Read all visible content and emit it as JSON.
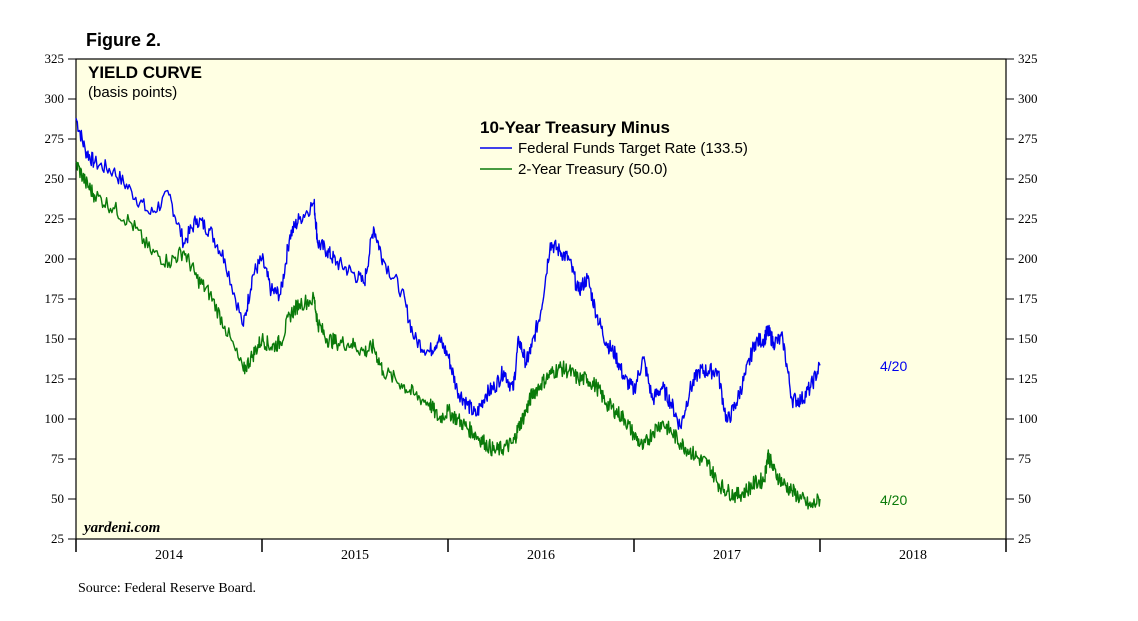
{
  "figure_label": "Figure 2.",
  "source": "Source: Federal Reserve Board.",
  "watermark": "yardeni.com",
  "colors": {
    "blue": "#0000ee",
    "green": "#0a7a0a",
    "plot_bg": "#ffffe3"
  },
  "chart_data": {
    "type": "line",
    "title": "YIELD CURVE",
    "subtitle": "(basis points)",
    "legend_title": "10-Year Treasury Minus",
    "ylim": [
      25,
      325
    ],
    "yticks": [
      25,
      50,
      75,
      100,
      125,
      150,
      175,
      200,
      225,
      250,
      275,
      300,
      325
    ],
    "xlim": [
      2014.0,
      2019.0
    ],
    "year_labels": [
      "2014",
      "2015",
      "2016",
      "2017",
      "2018"
    ],
    "series": [
      {
        "name": "Federal Funds Target Rate (133.5)",
        "color": "#0000ee",
        "end_label": "4/20",
        "x": [
          2014.0,
          2014.05,
          2014.1,
          2014.2,
          2014.3,
          2014.4,
          2014.5,
          2014.58,
          2014.65,
          2014.72,
          2014.8,
          2014.9,
          2014.95,
          2015.0,
          2015.05,
          2015.1,
          2015.15,
          2015.2,
          2015.28,
          2015.3,
          2015.35,
          2015.4,
          2015.48,
          2015.55,
          2015.6,
          2015.65,
          2015.75,
          2015.82,
          2015.9,
          2015.95,
          2016.0,
          2016.05,
          2016.1,
          2016.15,
          2016.2,
          2016.25,
          2016.3,
          2016.35,
          2016.38,
          2016.42,
          2016.45,
          2016.5,
          2016.55,
          2016.6,
          2016.65,
          2016.7,
          2016.75,
          2016.8,
          2016.85,
          2016.9,
          2016.95,
          2017.0,
          2017.05,
          2017.1,
          2017.15,
          2017.2,
          2017.25,
          2017.3,
          2017.35,
          2017.4,
          2017.45,
          2017.5,
          2017.55,
          2017.6,
          2017.65,
          2017.7,
          2017.72,
          2017.75,
          2017.8,
          2017.85,
          2017.9,
          2017.95,
          2018.0,
          2018.05,
          2018.1,
          2018.15,
          2018.2,
          2018.25,
          2018.3
        ],
        "values": [
          288,
          268,
          260,
          255,
          242,
          228,
          240,
          210,
          225,
          218,
          200,
          158,
          190,
          200,
          180,
          178,
          215,
          225,
          235,
          210,
          205,
          198,
          192,
          185,
          220,
          200,
          180,
          150,
          142,
          150,
          140,
          118,
          110,
          102,
          115,
          120,
          130,
          118,
          150,
          135,
          145,
          168,
          210,
          205,
          200,
          180,
          188,
          165,
          148,
          140,
          125,
          118,
          138,
          112,
          120,
          110,
          95,
          118,
          130,
          130,
          130,
          98,
          110,
          128,
          148,
          150,
          155,
          148,
          150,
          112,
          112,
          120,
          133.5,
          null,
          null,
          null,
          null,
          null,
          null
        ]
      },
      {
        "name": "2-Year Treasury (50.0)",
        "color": "#0a7a0a",
        "end_label": "4/20",
        "x": [
          2014.0,
          2014.05,
          2014.1,
          2014.2,
          2014.3,
          2014.4,
          2014.5,
          2014.58,
          2014.65,
          2014.72,
          2014.8,
          2014.9,
          2014.95,
          2015.0,
          2015.05,
          2015.1,
          2015.15,
          2015.2,
          2015.28,
          2015.3,
          2015.35,
          2015.4,
          2015.48,
          2015.55,
          2015.6,
          2015.65,
          2015.75,
          2015.82,
          2015.9,
          2015.95,
          2016.0,
          2016.05,
          2016.1,
          2016.15,
          2016.2,
          2016.25,
          2016.3,
          2016.35,
          2016.38,
          2016.42,
          2016.45,
          2016.5,
          2016.55,
          2016.6,
          2016.65,
          2016.7,
          2016.75,
          2016.8,
          2016.85,
          2016.9,
          2016.95,
          2017.0,
          2017.05,
          2017.1,
          2017.15,
          2017.2,
          2017.25,
          2017.3,
          2017.35,
          2017.4,
          2017.45,
          2017.5,
          2017.55,
          2017.6,
          2017.65,
          2017.7,
          2017.72,
          2017.75,
          2017.8,
          2017.85,
          2017.9,
          2017.95,
          2018.0,
          2018.05,
          2018.1,
          2018.15,
          2018.2,
          2018.25,
          2018.3
        ],
        "values": [
          260,
          248,
          240,
          232,
          222,
          205,
          198,
          205,
          188,
          178,
          158,
          130,
          140,
          150,
          145,
          148,
          165,
          172,
          175,
          160,
          150,
          148,
          147,
          142,
          145,
          130,
          122,
          115,
          110,
          100,
          105,
          100,
          95,
          90,
          85,
          80,
          82,
          85,
          95,
          105,
          115,
          122,
          128,
          132,
          130,
          125,
          125,
          120,
          110,
          105,
          100,
          90,
          82,
          92,
          98,
          92,
          85,
          80,
          75,
          72,
          60,
          55,
          52,
          55,
          60,
          62,
          78,
          68,
          60,
          55,
          50,
          45,
          50.0,
          null,
          null,
          null,
          null,
          null,
          null
        ]
      }
    ]
  }
}
